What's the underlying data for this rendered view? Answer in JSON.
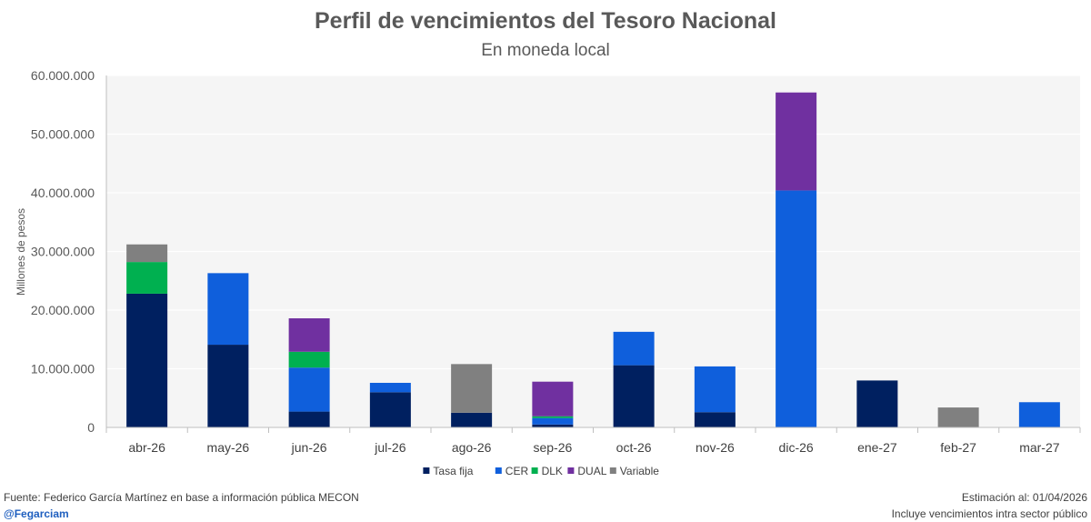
{
  "header": {
    "title": "Perfil de vencimientos del Tesoro Nacional",
    "subtitle": "En moneda local"
  },
  "footer": {
    "source": "Fuente: Federico García Martínez en base a información pública MECON",
    "handle": "@Fegarciam",
    "estimate": "Estimación al: 01/04/2026",
    "note": "Incluye vencimientos intra sector público"
  },
  "chart_data": {
    "type": "bar",
    "stacked": true,
    "title": "Perfil de vencimientos del Tesoro Nacional",
    "subtitle": "En moneda local",
    "xlabel": "",
    "ylabel": "Millones de pesos",
    "ylim": [
      0,
      60000000
    ],
    "yticks": [
      0,
      10000000,
      20000000,
      30000000,
      40000000,
      50000000,
      60000000
    ],
    "ytick_labels": [
      "0",
      "10.000.000",
      "20.000.000",
      "30.000.000",
      "40.000.000",
      "50.000.000",
      "60.000.000"
    ],
    "grid": true,
    "legend_position": "bottom",
    "categories": [
      "abr-26",
      "may-26",
      "jun-26",
      "jul-26",
      "ago-26",
      "sep-26",
      "oct-26",
      "nov-26",
      "dic-26",
      "ene-27",
      "feb-27",
      "mar-27"
    ],
    "series": [
      {
        "name": "Tasa fija",
        "color": "#002060",
        "values": [
          22800000,
          14100000,
          2700000,
          6000000,
          2500000,
          500000,
          10600000,
          2600000,
          0,
          8000000,
          0,
          0
        ]
      },
      {
        "name": "CER",
        "color": "#0f5fdc",
        "values": [
          0,
          12200000,
          7500000,
          1600000,
          0,
          1100000,
          5700000,
          7800000,
          40400000,
          0,
          0,
          4300000
        ]
      },
      {
        "name": "DLK",
        "color": "#00b050",
        "values": [
          5400000,
          0,
          2700000,
          0,
          0,
          300000,
          0,
          0,
          0,
          0,
          0,
          0
        ]
      },
      {
        "name": "DUAL",
        "color": "#7030a0",
        "values": [
          0,
          0,
          5700000,
          0,
          0,
          5900000,
          0,
          0,
          16700000,
          0,
          0,
          0
        ]
      },
      {
        "name": "Variable",
        "color": "#808080",
        "values": [
          3000000,
          0,
          0,
          0,
          8300000,
          0,
          0,
          0,
          0,
          0,
          3400000,
          0
        ]
      }
    ]
  }
}
